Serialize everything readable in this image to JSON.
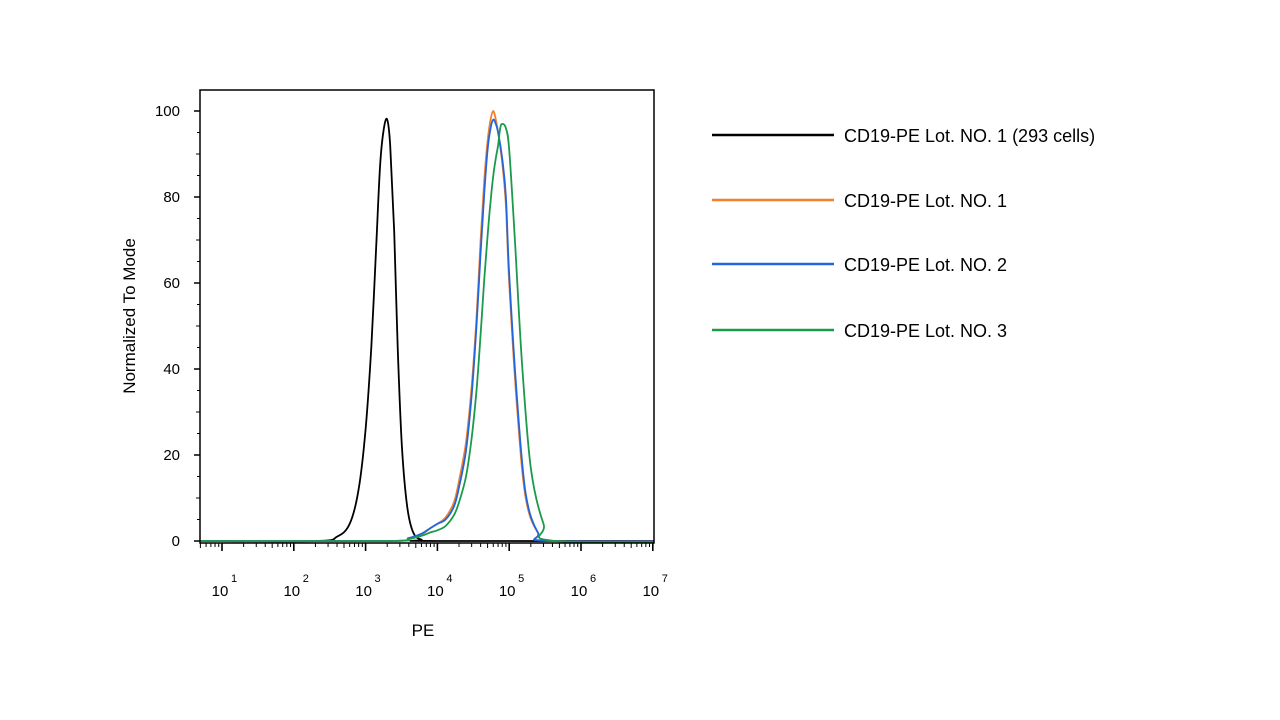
{
  "chart_data": {
    "type": "line",
    "xlabel": "PE",
    "ylabel": "Normalized To Mode",
    "x_scale": "log",
    "xlim": [
      4,
      150000000
    ],
    "ylim": [
      0,
      100
    ],
    "y_ticks": [
      {
        "value": 0,
        "label": "0"
      },
      {
        "value": 20,
        "label": "20"
      },
      {
        "value": 40,
        "label": "40"
      },
      {
        "value": 60,
        "label": "60"
      },
      {
        "value": 80,
        "label": "80"
      },
      {
        "value": 100,
        "label": "100"
      }
    ],
    "x_ticks": [
      {
        "value": 10,
        "base": "10",
        "exp": "1"
      },
      {
        "value": 100,
        "base": "10",
        "exp": "2"
      },
      {
        "value": 1000,
        "base": "10",
        "exp": "3"
      },
      {
        "value": 10000,
        "base": "10",
        "exp": "4"
      },
      {
        "value": 100000,
        "base": "10",
        "exp": "5"
      },
      {
        "value": 1000000,
        "base": "10",
        "exp": "6"
      },
      {
        "value": 10000000,
        "base": "10",
        "exp": "7"
      }
    ],
    "legend_position": "right",
    "series": [
      {
        "name": "CD19-PE Lot. NO. 1 (293 cells)",
        "color": "#000000",
        "x": [
          4,
          200,
          400,
          600,
          800,
          1000,
          1200,
          1400,
          1600,
          1800,
          2000,
          2200,
          2500,
          2800,
          3200,
          3800,
          4600,
          6000,
          10000,
          150000000
        ],
        "y": [
          0,
          0,
          1,
          4,
          12,
          26,
          45,
          68,
          88,
          96,
          98,
          92,
          72,
          45,
          22,
          8,
          2,
          0.3,
          0,
          0
        ]
      },
      {
        "name": "CD19-PE Lot. NO. 1",
        "color": "#f08030",
        "x": [
          4,
          2000,
          4000,
          6000,
          8000,
          10000,
          13000,
          17000,
          20000,
          25000,
          30000,
          35000,
          40000,
          45000,
          50000,
          55000,
          60000,
          65000,
          70000,
          80000,
          90000,
          100000,
          130000,
          170000,
          250000,
          400000,
          150000000
        ],
        "y": [
          0,
          0,
          0.5,
          1.5,
          3,
          4,
          5.5,
          9,
          14,
          23,
          36,
          52,
          70,
          84,
          93,
          98,
          100,
          98,
          95,
          88,
          78,
          60,
          30,
          10,
          2,
          0,
          0
        ]
      },
      {
        "name": "CD19-PE Lot. NO. 2",
        "color": "#2266dd",
        "x": [
          4,
          2000,
          4000,
          6000,
          8000,
          10000,
          13000,
          17000,
          20000,
          25000,
          30000,
          35000,
          40000,
          45000,
          50000,
          55000,
          60000,
          65000,
          70000,
          80000,
          90000,
          100000,
          130000,
          170000,
          250000,
          400000,
          150000000
        ],
        "y": [
          0,
          0,
          0.7,
          1.7,
          3,
          4,
          5,
          8,
          12.5,
          21,
          34,
          50,
          67,
          81,
          91,
          96,
          98,
          97,
          95,
          89,
          80,
          62,
          32,
          11,
          2,
          0,
          0
        ]
      },
      {
        "name": "CD19-PE Lot. NO. 3",
        "color": "#1a9a4a",
        "x": [
          4,
          2000,
          4000,
          6000,
          8000,
          10000,
          13000,
          17000,
          20000,
          25000,
          30000,
          35000,
          40000,
          45000,
          50000,
          55000,
          60000,
          65000,
          70000,
          75000,
          80000,
          90000,
          100000,
          120000,
          150000,
          200000,
          300000,
          450000,
          150000000
        ],
        "y": [
          0,
          0,
          0.5,
          1.2,
          2,
          2.5,
          3.5,
          6,
          9,
          15,
          24,
          35,
          48,
          61,
          71,
          79,
          85,
          89,
          92,
          96,
          97,
          96,
          91,
          70,
          42,
          17,
          4,
          0,
          0
        ]
      }
    ]
  }
}
